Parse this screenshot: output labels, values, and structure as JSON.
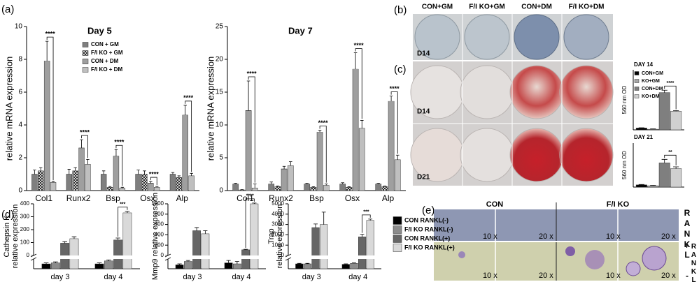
{
  "panel_labels": [
    "(a)",
    "(b)",
    "(c)",
    "(d)",
    "(e)"
  ],
  "chart_data": [
    {
      "type": "bar",
      "title": "Day 5",
      "ylabel": [
        "relative mRNA expression"
      ],
      "categories": [
        "Col1",
        "Runx2",
        "Bsp",
        "Osx",
        "Alp"
      ],
      "ylim": [
        0,
        10
      ],
      "yticks": [
        0,
        2,
        4,
        6,
        8,
        10
      ],
      "legend": "upper right",
      "series": [
        {
          "name": "CON + GM",
          "color": "#7f7f7f",
          "values": [
            1.0,
            1.0,
            1.0,
            1.0,
            1.0
          ],
          "errors": [
            0.25,
            0.3,
            0.2,
            0.25,
            0.1
          ]
        },
        {
          "name": "F/I KO + GM",
          "color": "#ffffff",
          "pattern": "crosshatch",
          "values": [
            1.2,
            1.2,
            0.2,
            1.0,
            0.8
          ],
          "errors": [
            0.2,
            0.2,
            0.05,
            0.2,
            0.1
          ]
        },
        {
          "name": "CON + DM",
          "color": "#ffffff",
          "pattern": "hlines",
          "values": [
            7.9,
            2.6,
            2.1,
            0.45,
            4.6
          ],
          "errors": [
            1.2,
            0.5,
            0.4,
            0.1,
            0.6
          ]
        },
        {
          "name": "F/I KO + DM",
          "color": "#bfbfbf",
          "values": [
            0.5,
            1.6,
            0.15,
            0.2,
            0.9
          ],
          "errors": [
            0.05,
            0.3,
            0.05,
            0.05,
            0.15
          ]
        }
      ],
      "significance": [
        "****",
        "****",
        "****",
        "****",
        "****"
      ]
    },
    {
      "type": "bar",
      "title": "Day 7",
      "ylabel": [
        "relative mRNA expression"
      ],
      "categories": [
        "Col1",
        "Runx2",
        "Bsp",
        "Osx",
        "Alp"
      ],
      "ylim": [
        0,
        25
      ],
      "yticks": [
        0,
        5,
        10,
        15,
        20,
        25
      ],
      "series": [
        {
          "name": "CON + GM",
          "color": "#7f7f7f",
          "values": [
            1.0,
            1.0,
            1.0,
            1.0,
            1.0
          ],
          "errors": [
            0.1,
            0.3,
            0.1,
            0.2,
            0.1
          ]
        },
        {
          "name": "F/I KO + GM",
          "color": "#ffffff",
          "pattern": "crosshatch",
          "values": [
            0.1,
            0.6,
            0.5,
            0.5,
            0.6
          ],
          "errors": [
            0.05,
            0.1,
            0.1,
            0.1,
            0.1
          ]
        },
        {
          "name": "CON + DM",
          "color": "#ffffff",
          "pattern": "hlines",
          "values": [
            12.2,
            3.3,
            8.9,
            18.5,
            13.6
          ],
          "errors": [
            4.5,
            0.4,
            0.3,
            2.5,
            0.8
          ]
        },
        {
          "name": "F/I KO + DM",
          "color": "#bfbfbf",
          "values": [
            0.4,
            3.8,
            0.8,
            9.5,
            4.7
          ],
          "errors": [
            0.6,
            0.6,
            0.2,
            1.2,
            0.7
          ]
        }
      ],
      "significance": [
        "****",
        null,
        "****",
        "****",
        "****"
      ]
    },
    {
      "type": "bar",
      "title": "DAY 14",
      "ylabel": [
        "560 nm OD"
      ],
      "categories": [
        null
      ],
      "ylim": [
        0,
        1
      ],
      "legend": "upper left",
      "series": [
        {
          "name": "CON+GM",
          "color": "#000000",
          "values": [
            0.03
          ],
          "errors": [
            0.005
          ]
        },
        {
          "name": "KO+GM",
          "color": "#a6a6a6",
          "values": [
            0.01
          ],
          "errors": [
            0.005
          ]
        },
        {
          "name": "CON+DM",
          "color": "#7f7f7f",
          "values": [
            0.62
          ],
          "errors": [
            0.04
          ]
        },
        {
          "name": "KO+DM",
          "color": "#d0d0d0",
          "values": [
            0.31
          ],
          "errors": [
            0.01
          ]
        }
      ],
      "significance": [
        "****"
      ]
    },
    {
      "type": "bar",
      "title": "DAY 21",
      "ylabel": [
        "560 nm OD"
      ],
      "categories": [
        null
      ],
      "ylim": [
        0,
        1
      ],
      "series": [
        {
          "name": "CON+GM",
          "color": "#000000",
          "values": [
            0.05
          ],
          "errors": [
            0.01
          ]
        },
        {
          "name": "KO+GM",
          "color": "#a6a6a6",
          "values": [
            0.03
          ],
          "errors": [
            0.01
          ]
        },
        {
          "name": "CON+DM",
          "color": "#7f7f7f",
          "values": [
            0.55
          ],
          "errors": [
            0.08
          ]
        },
        {
          "name": "KO+DM",
          "color": "#d0d0d0",
          "values": [
            0.42
          ],
          "errors": [
            0.04
          ]
        }
      ],
      "significance": [
        "**"
      ]
    },
    {
      "type": "bar",
      "ylabel": [
        "Cathepsin K",
        "relative expression"
      ],
      "categories": [
        "day 3",
        "day 4"
      ],
      "ylim_low": [
        0,
        2
      ],
      "ylim": [
        0,
        400
      ],
      "yticks": [
        0,
        100,
        200,
        300,
        400
      ],
      "series": [
        {
          "name": "CON RANKL(-)",
          "color": "#000000",
          "values": [
            1.0,
            1.0
          ],
          "errors": [
            0.2,
            0.2
          ]
        },
        {
          "name": "F/I KO RANKL(-)",
          "color": "#8c8c8c",
          "values": [
            1.2,
            1.6
          ],
          "errors": [
            0.2,
            0.2
          ]
        },
        {
          "name": "CON RANKL(+)",
          "color": "#666666",
          "values": [
            95,
            120
          ],
          "errors": [
            12,
            15
          ]
        },
        {
          "name": "F/I KO RANKL(+)",
          "color": "#d9d9d9",
          "values": [
            130,
            330
          ],
          "errors": [
            15,
            12
          ]
        }
      ],
      "significance": [
        null,
        "***"
      ]
    },
    {
      "type": "bar",
      "ylabel": [
        "Mmp9 relative expression"
      ],
      "categories": [
        "day 3",
        "day 4"
      ],
      "ylim_low": [
        0,
        2
      ],
      "ylim": [
        0,
        1000
      ],
      "yticks": [
        0,
        200,
        400,
        600,
        800,
        1000
      ],
      "series": [
        {
          "name": "CON RANKL(-)",
          "color": "#000000",
          "values": [
            0.8,
            1.2
          ],
          "errors": [
            0.2,
            0.5
          ]
        },
        {
          "name": "F/I KO RANKL(-)",
          "color": "#8c8c8c",
          "values": [
            1.5,
            1.0
          ],
          "errors": [
            0.2,
            0.5
          ]
        },
        {
          "name": "CON RANKL(+)",
          "color": "#666666",
          "values": [
            480,
            110
          ],
          "errors": [
            60,
            10
          ]
        },
        {
          "name": "F/I KO RANKL(+)",
          "color": "#d9d9d9",
          "values": [
            420,
            1000
          ],
          "errors": [
            60,
            15
          ]
        }
      ],
      "significance": [
        null,
        "****"
      ]
    },
    {
      "type": "bar",
      "ylabel": [
        "Trap",
        "relative expression"
      ],
      "categories": [
        "day 3",
        "day 4"
      ],
      "ylim_low": [
        0,
        2
      ],
      "ylim": [
        0,
        5000
      ],
      "yticks": [
        0,
        1000,
        2000,
        3000,
        4000,
        5000
      ],
      "legend": "right",
      "series": [
        {
          "name": "CON RANKL(-)",
          "color": "#000000",
          "values": [
            1.0,
            0.9
          ],
          "errors": [
            0.1,
            0.1
          ]
        },
        {
          "name": "F/I KO RANKL(-)",
          "color": "#8c8c8c",
          "values": [
            1.0,
            1.1
          ],
          "errors": [
            0.1,
            0.1
          ]
        },
        {
          "name": "CON RANKL(+)",
          "color": "#666666",
          "values": [
            2700,
            1800
          ],
          "errors": [
            350,
            250
          ]
        },
        {
          "name": "F/I KO RANKL(+)",
          "color": "#d9d9d9",
          "values": [
            3000,
            3400
          ],
          "errors": [
            1200,
            120
          ]
        }
      ],
      "significance": [
        null,
        "***"
      ]
    }
  ],
  "photos_b": {
    "columns": [
      "CON+GM",
      "F/I KO+GM",
      "CON+DM",
      "F/I KO+DM"
    ],
    "row_label": "D14"
  },
  "photos_c": {
    "row_labels": [
      "D14",
      "D21"
    ]
  },
  "micrographs_e": {
    "columns": [
      "CON",
      "F/I KO"
    ],
    "rows": [
      "RANKL -",
      "RANKL +"
    ],
    "magnifications": [
      "10 x",
      "20 x"
    ]
  }
}
